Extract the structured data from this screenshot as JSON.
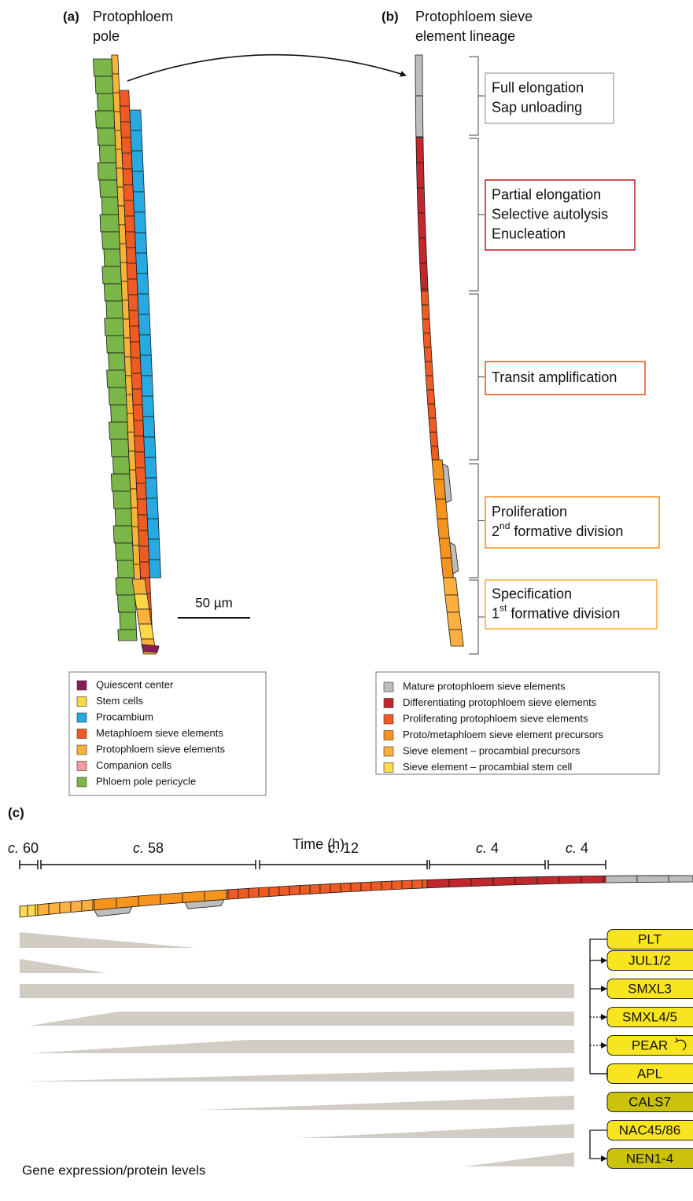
{
  "panel_a": {
    "label": "(a)",
    "title_lines": [
      "Protophloem",
      "pole"
    ],
    "scale_bar": "50 µm",
    "legend": [
      {
        "label": "Quiescent center",
        "color": "#8b1c5c"
      },
      {
        "label": "Stem cells",
        "color": "#fcd846"
      },
      {
        "label": "Procambium",
        "color": "#27a9e1"
      },
      {
        "label": "Metaphloem sieve elements",
        "color": "#ef5a25"
      },
      {
        "label": "Protophloem sieve elements",
        "color": "#f9b23a"
      },
      {
        "label": "Companion cells",
        "color": "#f49ca1"
      },
      {
        "label": "Phloem pole pericycle",
        "color": "#7ab648"
      }
    ]
  },
  "panel_b": {
    "label": "(b)",
    "title_lines": [
      "Protophloem sieve",
      "element lineage"
    ],
    "stages": [
      {
        "border": "#b3b3b3",
        "lines": [
          [
            {
              "text": "Full elongation"
            }
          ],
          [
            {
              "text": "Sap unloading"
            }
          ]
        ]
      },
      {
        "border": "#c1272d",
        "lines": [
          [
            {
              "text": "Partial elongation"
            }
          ],
          [
            {
              "text": "Selective autolysis"
            }
          ],
          [
            {
              "text": "Enucleation"
            }
          ]
        ]
      },
      {
        "border": "#ef5a25",
        "lines": [
          [
            {
              "text": "Transit amplification"
            }
          ]
        ]
      },
      {
        "border": "#f7941d",
        "lines": [
          [
            {
              "text": "Proliferation"
            }
          ],
          [
            {
              "text": "2"
            },
            {
              "text": "nd",
              "sup": true
            },
            {
              "text": " formative division"
            }
          ]
        ]
      },
      {
        "border": "#fbb040",
        "lines": [
          [
            {
              "text": "Specification"
            }
          ],
          [
            {
              "text": "1"
            },
            {
              "text": "st",
              "sup": true
            },
            {
              "text": " formative division"
            }
          ]
        ]
      }
    ],
    "legend": [
      {
        "label": "Mature protophloem sieve elements",
        "color": "#bdbdbd"
      },
      {
        "label": "Differentiating protophloem sieve elements",
        "color": "#c1272d"
      },
      {
        "label": "Proliferating protophloem sieve elements",
        "color": "#ef5a25"
      },
      {
        "label": "Proto/metaphloem sieve element precursors",
        "color": "#f7941d"
      },
      {
        "label": "Sieve element – procambial precursors",
        "color": "#fbb040"
      },
      {
        "label": "Sieve element – procambial stem cell",
        "color": "#fdd94e"
      }
    ]
  },
  "panel_c": {
    "label": "(c)",
    "axis_title": "Time (h)",
    "spans": [
      {
        "prefix": "c.",
        "hours": 60
      },
      {
        "prefix": "c.",
        "hours": 58
      },
      {
        "prefix": "c.",
        "hours": 12
      },
      {
        "prefix": "c.",
        "hours": 4
      },
      {
        "prefix": "c.",
        "hours": 4
      }
    ],
    "genes": [
      {
        "name": "PLT",
        "color": "#f8e51f"
      },
      {
        "name": "JUL1/2",
        "color": "#f8e51f"
      },
      {
        "name": "SMXL3",
        "color": "#f8e51f"
      },
      {
        "name": "SMXL4/5",
        "color": "#f8e51f"
      },
      {
        "name": "PEAR",
        "color": "#f8e51f"
      },
      {
        "name": "APL",
        "color": "#f8e51f"
      },
      {
        "name": "CALS7",
        "color": "#cbc20c"
      },
      {
        "name": "NAC45/86",
        "color": "#f8e51f"
      },
      {
        "name": "NEN1-4",
        "color": "#cbc20c"
      }
    ],
    "footer": "Gene expression/protein levels"
  }
}
